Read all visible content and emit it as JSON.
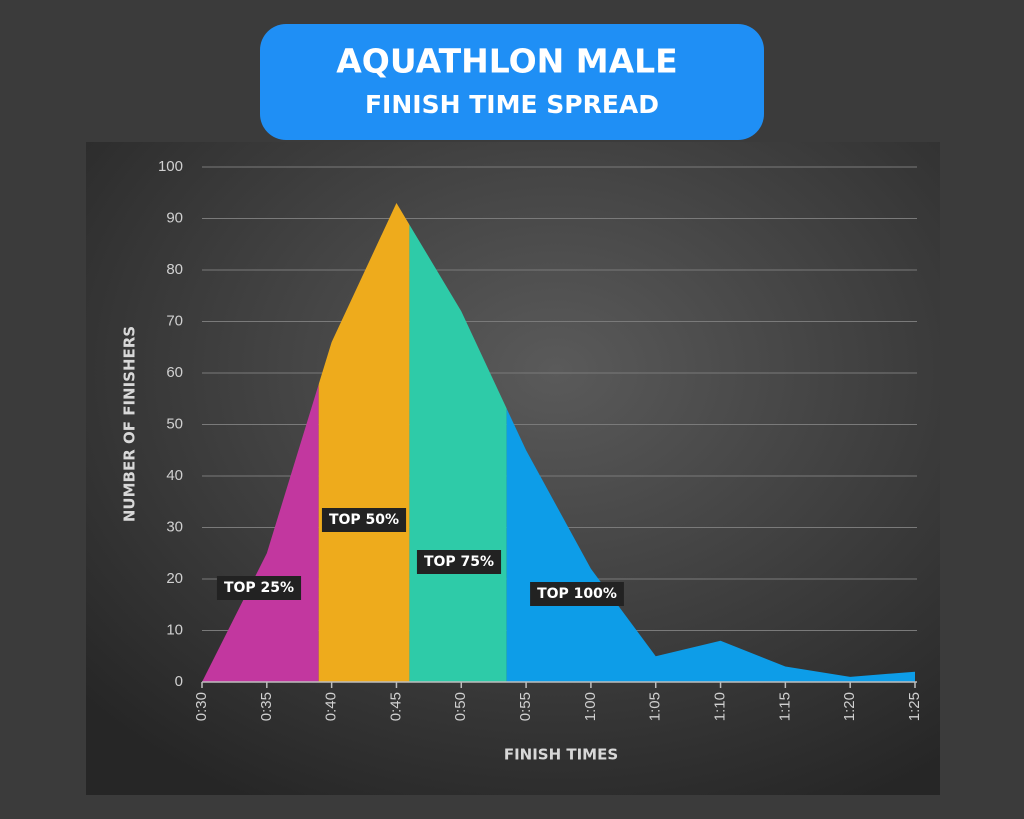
{
  "chart_data": {
    "type": "area",
    "title": "AQUATHLON MALE",
    "subtitle": "FINISH TIME SPREAD",
    "x_label": "FINISH TIMES",
    "y_label": "NUMBER OF FINISHERS",
    "x": [
      30,
      35,
      40,
      45,
      50,
      55,
      60,
      65,
      70,
      75,
      80,
      85
    ],
    "values": [
      0,
      25,
      66,
      93,
      72,
      45,
      22,
      5,
      8,
      3,
      1,
      2
    ],
    "xlim": [
      30,
      85
    ],
    "xticks": [
      {
        "value": 30,
        "label": "0:30"
      },
      {
        "value": 35,
        "label": "0:35"
      },
      {
        "value": 40,
        "label": "0:40"
      },
      {
        "value": 45,
        "label": "0:45"
      },
      {
        "value": 50,
        "label": "0:50"
      },
      {
        "value": 55,
        "label": "0:55"
      },
      {
        "value": 60,
        "label": "1:00"
      },
      {
        "value": 65,
        "label": "1:05"
      },
      {
        "value": 70,
        "label": "1:10"
      },
      {
        "value": 75,
        "label": "1:15"
      },
      {
        "value": 80,
        "label": "1:20"
      },
      {
        "value": 85,
        "label": "1:25"
      }
    ],
    "ylim": [
      0,
      100
    ],
    "yticks": [
      0,
      10,
      20,
      30,
      40,
      50,
      60,
      70,
      80,
      90,
      100
    ],
    "grid": true,
    "regions": [
      {
        "name": "TOP 25%",
        "color": "#c2379f",
        "x_range": [
          30,
          39
        ]
      },
      {
        "name": "TOP 50%",
        "color": "#eeab1c",
        "x_range": [
          39,
          46
        ]
      },
      {
        "name": "TOP 75%",
        "color": "#2ecba8",
        "x_range": [
          46,
          53.5
        ]
      },
      {
        "name": "TOP 100%",
        "color": "#0d9de8",
        "x_range": [
          53.5,
          85
        ]
      }
    ]
  }
}
